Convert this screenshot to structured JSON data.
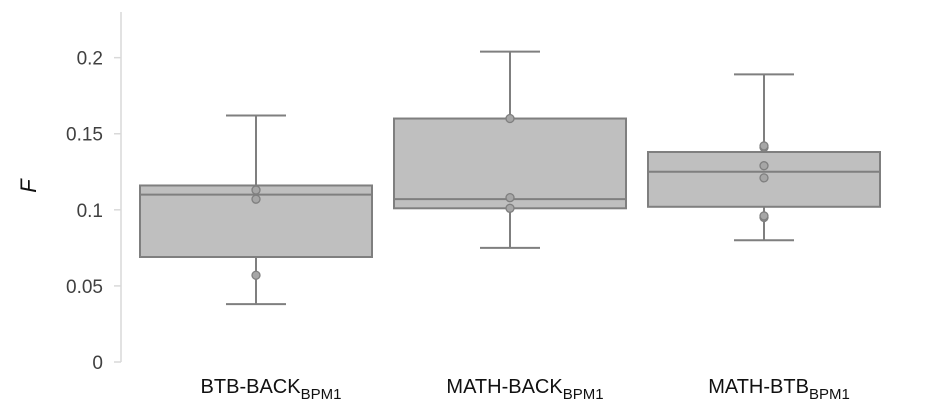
{
  "chart_data": {
    "type": "boxplot",
    "ylabel": "F",
    "ylim": [
      0,
      0.23
    ],
    "yticks": [
      {
        "value": 0,
        "label": "0"
      },
      {
        "value": 0.05,
        "label": "0.05"
      },
      {
        "value": 0.1,
        "label": "0.1"
      },
      {
        "value": 0.15,
        "label": "0.15"
      },
      {
        "value": 0.2,
        "label": "0.2"
      }
    ],
    "grid": false,
    "colors": {
      "box_fill": "#bfbfbf",
      "box_edge": "#7f7f7f",
      "point": "#a6a6a6"
    },
    "categories": [
      {
        "label_main": "BTB-BACK",
        "label_sub": "BPM1"
      },
      {
        "label_main": "MATH-BACK",
        "label_sub": "BPM1"
      },
      {
        "label_main": "MATH-BTB",
        "label_sub": "BPM1"
      }
    ],
    "boxes": [
      {
        "whisker_low": 0.038,
        "q1": 0.069,
        "median": 0.11,
        "q3": 0.116,
        "whisker_high": 0.162,
        "points": [
          0.057,
          0.107,
          0.113
        ]
      },
      {
        "whisker_low": 0.075,
        "q1": 0.101,
        "median": 0.107,
        "q3": 0.16,
        "whisker_high": 0.204,
        "points": [
          0.101,
          0.108,
          0.16
        ]
      },
      {
        "whisker_low": 0.08,
        "q1": 0.102,
        "median": 0.125,
        "q3": 0.138,
        "whisker_high": 0.189,
        "points": [
          0.095,
          0.096,
          0.121,
          0.129,
          0.141,
          0.142
        ]
      }
    ]
  }
}
